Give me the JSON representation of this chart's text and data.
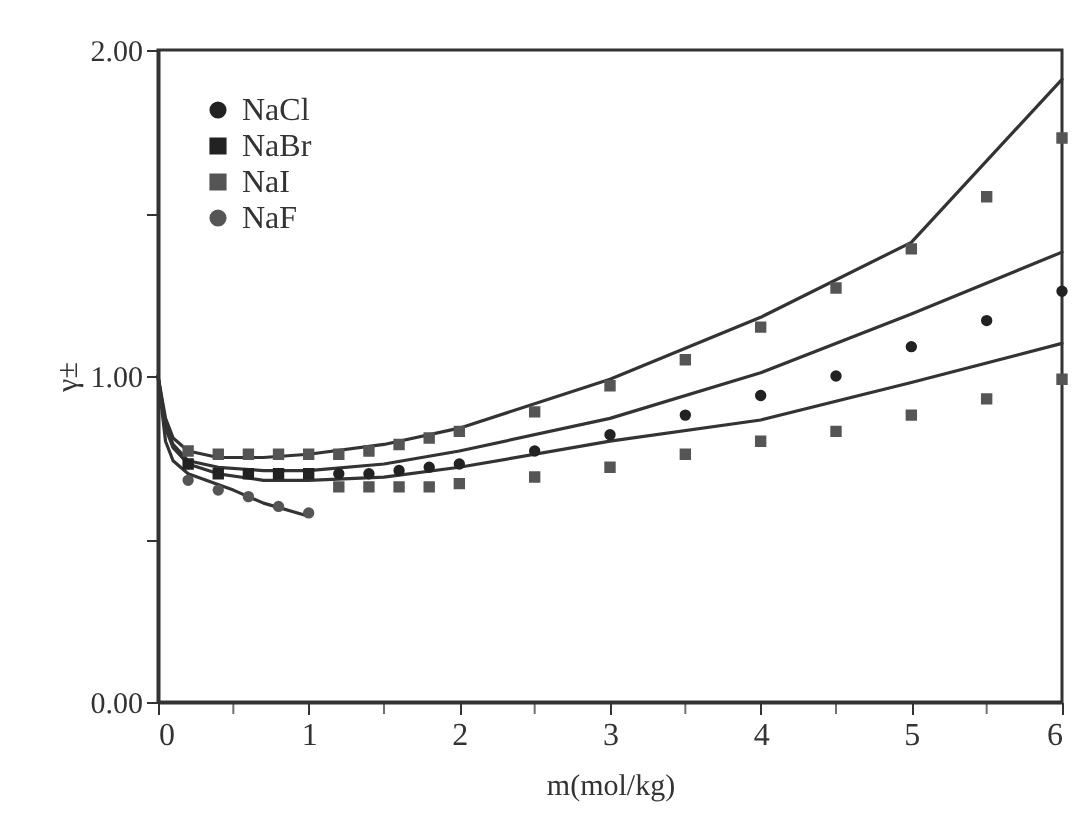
{
  "chart_data": {
    "type": "scatter",
    "xlabel": "m(mol/kg)",
    "ylabel": "γ±",
    "xlim": [
      0,
      6
    ],
    "ylim": [
      0,
      2
    ],
    "xticks": [
      0,
      {
        "value": 0.5,
        "label": null
      },
      1,
      {
        "value": 1.5,
        "label": null
      },
      2,
      {
        "value": 2.5,
        "label": null
      },
      3,
      {
        "value": 3.5,
        "label": null
      },
      4,
      {
        "value": 4.5,
        "label": null
      },
      5,
      {
        "value": 5.5,
        "label": null
      },
      6
    ],
    "yticks": [
      {
        "value": 0,
        "label": "0.00"
      },
      {
        "value": 0.5,
        "label": null
      },
      {
        "value": 1,
        "label": "1.00"
      },
      {
        "value": 1.5,
        "label": null
      },
      {
        "value": 2,
        "label": "2.00"
      }
    ],
    "legend": "top left",
    "grid": false,
    "series": [
      {
        "name": "NaCl",
        "marker": "circle",
        "color": "#222222",
        "x": [
          1.2,
          1.4,
          1.6,
          1.8,
          2.0,
          2.5,
          3,
          3.5,
          4,
          4.5,
          5,
          5.5,
          6
        ],
        "values": [
          0.7,
          0.7,
          0.71,
          0.72,
          0.73,
          0.77,
          0.82,
          0.88,
          0.94,
          1.0,
          1.09,
          1.17,
          1.26
        ]
      },
      {
        "name": "NaBr",
        "marker": "square",
        "color": "#222222",
        "x": [
          0.2,
          0.4,
          0.6,
          0.8,
          1.0
        ],
        "values": [
          0.73,
          0.7,
          0.7,
          0.7,
          0.7
        ]
      },
      {
        "name": "NaI",
        "marker": "square",
        "color": "#555555",
        "x": [
          0.2,
          0.4,
          0.6,
          0.8,
          1.0,
          1.2,
          1.4,
          1.6,
          1.8,
          2.0,
          2.5,
          3,
          3.5,
          4,
          4.5,
          5,
          5.5,
          6
        ],
        "values": [
          0.77,
          0.76,
          0.76,
          0.76,
          0.76,
          0.76,
          0.77,
          0.79,
          0.81,
          0.83,
          0.89,
          0.97,
          1.05,
          1.15,
          1.27,
          1.39,
          1.55,
          1.73
        ]
      },
      {
        "name": "NaF",
        "marker": "circle",
        "color": "#555555",
        "x": [
          0.2,
          0.4,
          0.6,
          0.8,
          1.0
        ],
        "values": [
          0.68,
          0.65,
          0.63,
          0.6,
          0.58
        ]
      },
      {
        "marker": "square",
        "color": "#555555",
        "x": [
          1.2,
          1.4,
          1.6,
          1.8,
          2.0,
          2.5,
          3,
          3.5,
          4,
          4.5,
          5,
          5.5,
          6
        ],
        "values": [
          0.66,
          0.66,
          0.66,
          0.66,
          0.67,
          0.69,
          0.72,
          0.76,
          0.8,
          0.83,
          0.88,
          0.93,
          0.99
        ]
      },
      {
        "type": "line",
        "color": "#333333",
        "x": [
          0,
          0.05,
          0.1,
          0.2,
          0.4,
          0.7,
          1,
          1.5,
          2,
          3,
          4,
          5,
          6
        ],
        "values": [
          1.0,
          0.87,
          0.81,
          0.77,
          0.75,
          0.75,
          0.76,
          0.79,
          0.84,
          0.99,
          1.18,
          1.41,
          1.91
        ]
      },
      {
        "type": "line",
        "color": "#333333",
        "x": [
          0,
          0.05,
          0.1,
          0.2,
          0.4,
          0.7,
          1,
          1.5,
          2,
          3,
          4,
          5,
          6
        ],
        "values": [
          1.0,
          0.85,
          0.79,
          0.74,
          0.72,
          0.71,
          0.71,
          0.73,
          0.77,
          0.87,
          1.01,
          1.19,
          1.38
        ]
      },
      {
        "type": "line",
        "color": "#333333",
        "x": [
          0,
          0.05,
          0.1,
          0.2,
          0.4,
          0.7,
          1,
          1.5,
          2,
          3,
          4,
          5,
          6
        ],
        "values": [
          1.0,
          0.84,
          0.78,
          0.73,
          0.7,
          0.68,
          0.68,
          0.69,
          0.72,
          0.8,
          0.865,
          0.98,
          1.1
        ]
      },
      {
        "type": "line",
        "color": "#333333",
        "x": [
          0,
          0.05,
          0.1,
          0.2,
          0.5,
          0.7,
          1.0
        ],
        "values": [
          1.0,
          0.8,
          0.74,
          0.7,
          0.65,
          0.61,
          0.57
        ]
      }
    ]
  }
}
